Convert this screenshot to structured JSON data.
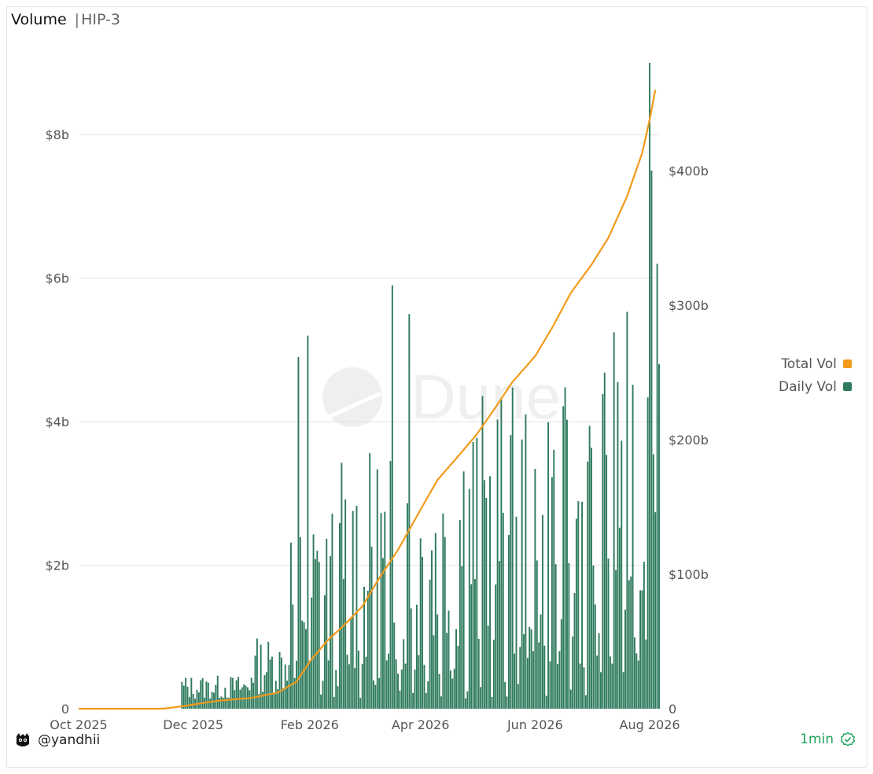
{
  "header": {
    "title": "Volume",
    "separator": "|",
    "subtitle": "HIP-3"
  },
  "footer": {
    "author": "@yandhii",
    "refresh": "1min",
    "author_icon": "mascot-icon",
    "status_icon": "verified-check-icon"
  },
  "watermark": {
    "text": "Dune"
  },
  "colors": {
    "daily": "#2d7a5c",
    "total": "#f29a1a",
    "grid": "#e3e3e3",
    "axis_text": "#555555",
    "refresh": "#1fa35b"
  },
  "chart_data": {
    "type": "bar",
    "legend_position": "right",
    "grid": true,
    "x_ticks": [
      "Oct 2025",
      "Dec 2025",
      "Feb 2026",
      "Apr 2026",
      "Jun 2026",
      "Aug 2026"
    ],
    "y_left_ticks": [
      "0",
      "$2b",
      "$4b",
      "$6b",
      "$8b"
    ],
    "y_right_ticks": [
      "0",
      "$100b",
      "$200b",
      "$300b",
      "$400b"
    ],
    "y_left_lim": [
      0,
      9
    ],
    "y_right_lim": [
      0,
      480
    ],
    "x_start": "2025-10-01",
    "series": [
      {
        "name": "Total Vol",
        "type": "line",
        "axis": "right",
        "points": [
          [
            "2025-10-01",
            0
          ],
          [
            "2025-11-15",
            0
          ],
          [
            "2025-11-26",
            2
          ],
          [
            "2025-12-05",
            4
          ],
          [
            "2025-12-15",
            6
          ],
          [
            "2026-01-01",
            8
          ],
          [
            "2026-01-15",
            12
          ],
          [
            "2026-01-25",
            20
          ],
          [
            "2026-02-01",
            35
          ],
          [
            "2026-02-10",
            50
          ],
          [
            "2026-02-20",
            63
          ],
          [
            "2026-03-01",
            76
          ],
          [
            "2026-03-10",
            97
          ],
          [
            "2026-03-20",
            118
          ],
          [
            "2026-04-01",
            148
          ],
          [
            "2026-04-10",
            170
          ],
          [
            "2026-04-20",
            186
          ],
          [
            "2026-05-01",
            204
          ],
          [
            "2026-05-10",
            222
          ],
          [
            "2026-05-20",
            243
          ],
          [
            "2026-06-01",
            262
          ],
          [
            "2026-06-10",
            283
          ],
          [
            "2026-06-20",
            309
          ],
          [
            "2026-07-01",
            330
          ],
          [
            "2026-07-10",
            350
          ],
          [
            "2026-07-20",
            381
          ],
          [
            "2026-07-28",
            413
          ],
          [
            "2026-08-01",
            438
          ],
          [
            "2026-08-04",
            460
          ]
        ]
      },
      {
        "name": "Daily Vol",
        "type": "bar",
        "axis": "left",
        "notable_values": [
          [
            "2026-01-26",
            4.9
          ],
          [
            "2026-01-31",
            5.2
          ],
          [
            "2026-03-17",
            5.9
          ],
          [
            "2026-03-26",
            5.5
          ],
          [
            "2026-08-01",
            9.0
          ],
          [
            "2026-08-02",
            7.5
          ],
          [
            "2026-08-05",
            6.2
          ],
          [
            "2026-08-06",
            4.8
          ]
        ]
      }
    ]
  }
}
